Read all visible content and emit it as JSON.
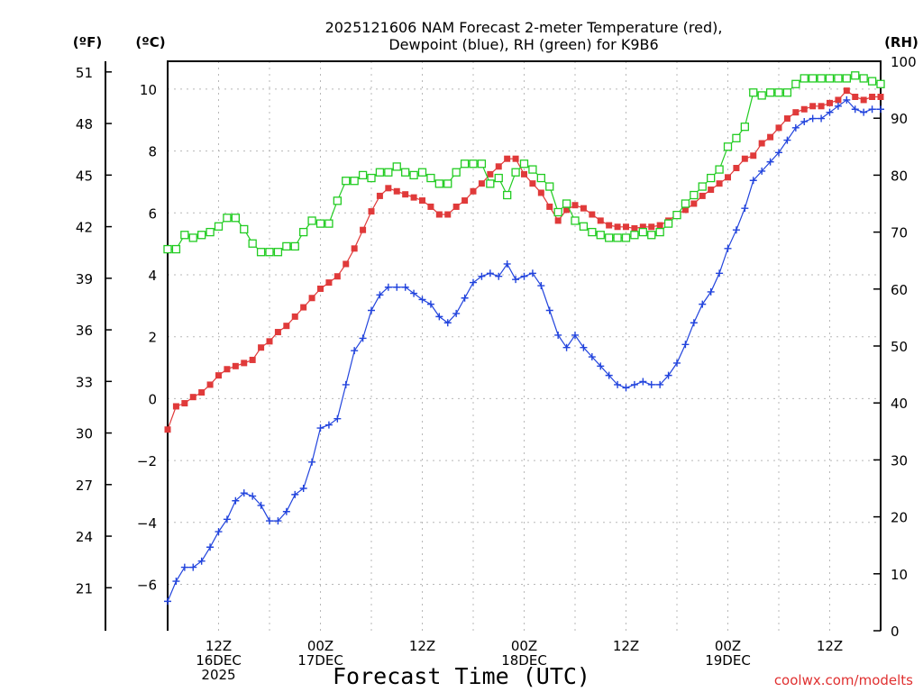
{
  "chart_data": {
    "type": "line",
    "title_line1": "2025121606 NAM Forecast 2-meter Temperature (red),",
    "title_line2": "Dewpoint (blue), RH (green) for K9B6",
    "unit_left_outer": "(ºF)",
    "unit_left_inner": "(ºC)",
    "unit_right": "(RH)",
    "xlabel": "Forecast Time (UTC)",
    "credit": "coolwx.com/modelts",
    "xlim_hours": [
      6,
      90
    ],
    "celsius_axis": {
      "lim": [
        -7.5,
        10.9
      ],
      "ticks": [
        "-6",
        "-4",
        "-2",
        "0",
        "2",
        "4",
        "6",
        "8",
        "10"
      ]
    },
    "fahrenheit_axis": {
      "ticks": [
        "21",
        "24",
        "27",
        "30",
        "33",
        "36",
        "39",
        "42",
        "45",
        "48",
        "51"
      ]
    },
    "rh_axis": {
      "lim": [
        0,
        100
      ],
      "ticks": [
        "0",
        "10",
        "20",
        "30",
        "40",
        "50",
        "60",
        "70",
        "80",
        "90",
        "100"
      ]
    },
    "x_ticks": [
      {
        "hour": 12,
        "lines": [
          "12Z",
          "16DEC",
          "2025"
        ]
      },
      {
        "hour": 24,
        "lines": [
          "00Z",
          "17DEC"
        ]
      },
      {
        "hour": 36,
        "lines": [
          "12Z"
        ]
      },
      {
        "hour": 48,
        "lines": [
          "00Z",
          "18DEC"
        ]
      },
      {
        "hour": 60,
        "lines": [
          "12Z"
        ]
      },
      {
        "hour": 72,
        "lines": [
          "00Z",
          "19DEC"
        ]
      },
      {
        "hour": 84,
        "lines": [
          "12Z"
        ]
      }
    ],
    "series": [
      {
        "name": "Temperature (C)",
        "axis": "celsius",
        "color": "#e03a3a",
        "marker": "filled-square",
        "points": [
          [
            6,
            -1.0
          ],
          [
            7,
            -0.25
          ],
          [
            8,
            -0.15
          ],
          [
            9,
            0.05
          ],
          [
            10,
            0.2
          ],
          [
            11,
            0.45
          ],
          [
            12,
            0.75
          ],
          [
            13,
            0.95
          ],
          [
            14,
            1.05
          ],
          [
            15,
            1.15
          ],
          [
            16,
            1.25
          ],
          [
            17,
            1.65
          ],
          [
            18,
            1.85
          ],
          [
            19,
            2.15
          ],
          [
            20,
            2.35
          ],
          [
            21,
            2.65
          ],
          [
            22,
            2.95
          ],
          [
            23,
            3.25
          ],
          [
            24,
            3.55
          ],
          [
            25,
            3.75
          ],
          [
            26,
            3.95
          ],
          [
            27,
            4.35
          ],
          [
            28,
            4.85
          ],
          [
            29,
            5.45
          ],
          [
            30,
            6.05
          ],
          [
            31,
            6.55
          ],
          [
            32,
            6.8
          ],
          [
            33,
            6.7
          ],
          [
            34,
            6.6
          ],
          [
            35,
            6.5
          ],
          [
            36,
            6.4
          ],
          [
            37,
            6.2
          ],
          [
            38,
            5.95
          ],
          [
            39,
            5.95
          ],
          [
            40,
            6.2
          ],
          [
            41,
            6.4
          ],
          [
            42,
            6.7
          ],
          [
            43,
            6.95
          ],
          [
            44,
            7.25
          ],
          [
            45,
            7.5
          ],
          [
            46,
            7.75
          ],
          [
            47,
            7.75
          ],
          [
            48,
            7.25
          ],
          [
            49,
            6.95
          ],
          [
            50,
            6.65
          ],
          [
            51,
            6.2
          ],
          [
            52,
            5.75
          ],
          [
            53,
            6.1
          ],
          [
            54,
            6.25
          ],
          [
            55,
            6.15
          ],
          [
            56,
            5.95
          ],
          [
            57,
            5.75
          ],
          [
            58,
            5.6
          ],
          [
            59,
            5.55
          ],
          [
            60,
            5.55
          ],
          [
            61,
            5.5
          ],
          [
            62,
            5.55
          ],
          [
            63,
            5.55
          ],
          [
            64,
            5.6
          ],
          [
            65,
            5.75
          ],
          [
            66,
            5.95
          ],
          [
            67,
            6.1
          ],
          [
            68,
            6.3
          ],
          [
            69,
            6.55
          ],
          [
            70,
            6.75
          ],
          [
            71,
            6.95
          ],
          [
            72,
            7.15
          ],
          [
            73,
            7.45
          ],
          [
            74,
            7.75
          ],
          [
            75,
            7.85
          ],
          [
            76,
            8.25
          ],
          [
            77,
            8.45
          ],
          [
            78,
            8.75
          ],
          [
            79,
            9.05
          ],
          [
            80,
            9.25
          ],
          [
            81,
            9.35
          ],
          [
            82,
            9.45
          ],
          [
            83,
            9.45
          ],
          [
            84,
            9.55
          ],
          [
            85,
            9.65
          ],
          [
            86,
            9.95
          ],
          [
            87,
            9.75
          ],
          [
            88,
            9.65
          ],
          [
            89,
            9.75
          ],
          [
            90,
            9.75
          ]
        ]
      },
      {
        "name": "Dewpoint (C)",
        "axis": "celsius",
        "color": "#2244dd",
        "marker": "plus",
        "points": [
          [
            6,
            -6.55
          ],
          [
            7,
            -5.9
          ],
          [
            8,
            -5.45
          ],
          [
            9,
            -5.45
          ],
          [
            10,
            -5.25
          ],
          [
            11,
            -4.8
          ],
          [
            12,
            -4.3
          ],
          [
            13,
            -3.9
          ],
          [
            14,
            -3.3
          ],
          [
            15,
            -3.05
          ],
          [
            16,
            -3.15
          ],
          [
            17,
            -3.45
          ],
          [
            18,
            -3.95
          ],
          [
            19,
            -3.95
          ],
          [
            20,
            -3.65
          ],
          [
            21,
            -3.1
          ],
          [
            22,
            -2.9
          ],
          [
            23,
            -2.05
          ],
          [
            24,
            -0.95
          ],
          [
            25,
            -0.85
          ],
          [
            26,
            -0.65
          ],
          [
            27,
            0.45
          ],
          [
            28,
            1.55
          ],
          [
            29,
            1.95
          ],
          [
            30,
            2.85
          ],
          [
            31,
            3.35
          ],
          [
            32,
            3.6
          ],
          [
            33,
            3.6
          ],
          [
            34,
            3.6
          ],
          [
            35,
            3.4
          ],
          [
            36,
            3.2
          ],
          [
            37,
            3.05
          ],
          [
            38,
            2.65
          ],
          [
            39,
            2.45
          ],
          [
            40,
            2.75
          ],
          [
            41,
            3.25
          ],
          [
            42,
            3.75
          ],
          [
            43,
            3.95
          ],
          [
            44,
            4.05
          ],
          [
            45,
            3.95
          ],
          [
            46,
            4.35
          ],
          [
            47,
            3.85
          ],
          [
            48,
            3.95
          ],
          [
            49,
            4.05
          ],
          [
            50,
            3.65
          ],
          [
            51,
            2.85
          ],
          [
            52,
            2.05
          ],
          [
            53,
            1.65
          ],
          [
            54,
            2.05
          ],
          [
            55,
            1.65
          ],
          [
            56,
            1.35
          ],
          [
            57,
            1.05
          ],
          [
            58,
            0.75
          ],
          [
            59,
            0.45
          ],
          [
            60,
            0.35
          ],
          [
            61,
            0.45
          ],
          [
            62,
            0.55
          ],
          [
            63,
            0.45
          ],
          [
            64,
            0.45
          ],
          [
            65,
            0.75
          ],
          [
            66,
            1.15
          ],
          [
            67,
            1.75
          ],
          [
            68,
            2.45
          ],
          [
            69,
            3.05
          ],
          [
            70,
            3.45
          ],
          [
            71,
            4.05
          ],
          [
            72,
            4.85
          ],
          [
            73,
            5.45
          ],
          [
            74,
            6.15
          ],
          [
            75,
            7.05
          ],
          [
            76,
            7.35
          ],
          [
            77,
            7.65
          ],
          [
            78,
            7.95
          ],
          [
            79,
            8.35
          ],
          [
            80,
            8.75
          ],
          [
            81,
            8.95
          ],
          [
            82,
            9.05
          ],
          [
            83,
            9.05
          ],
          [
            84,
            9.25
          ],
          [
            85,
            9.45
          ],
          [
            86,
            9.65
          ],
          [
            87,
            9.35
          ],
          [
            88,
            9.25
          ],
          [
            89,
            9.35
          ],
          [
            90,
            9.35
          ]
        ]
      },
      {
        "name": "RH (%)",
        "axis": "rh",
        "color": "#22cc22",
        "marker": "open-square",
        "points": [
          [
            6,
            67
          ],
          [
            7,
            67
          ],
          [
            8,
            69.5
          ],
          [
            9,
            69
          ],
          [
            10,
            69.5
          ],
          [
            11,
            70
          ],
          [
            12,
            71
          ],
          [
            13,
            72.5
          ],
          [
            14,
            72.5
          ],
          [
            15,
            70.5
          ],
          [
            16,
            68
          ],
          [
            17,
            66.5
          ],
          [
            18,
            66.5
          ],
          [
            19,
            66.5
          ],
          [
            20,
            67.5
          ],
          [
            21,
            67.5
          ],
          [
            22,
            70
          ],
          [
            23,
            72
          ],
          [
            24,
            71.5
          ],
          [
            25,
            71.5
          ],
          [
            26,
            75.5
          ],
          [
            27,
            79
          ],
          [
            28,
            79
          ],
          [
            29,
            80
          ],
          [
            30,
            79.5
          ],
          [
            31,
            80.5
          ],
          [
            32,
            80.5
          ],
          [
            33,
            81.5
          ],
          [
            34,
            80.5
          ],
          [
            35,
            80
          ],
          [
            36,
            80.5
          ],
          [
            37,
            79.5
          ],
          [
            38,
            78.5
          ],
          [
            39,
            78.5
          ],
          [
            40,
            80.5
          ],
          [
            41,
            82
          ],
          [
            42,
            82
          ],
          [
            43,
            82
          ],
          [
            44,
            78.5
          ],
          [
            45,
            79.5
          ],
          [
            46,
            76.5
          ],
          [
            47,
            80.5
          ],
          [
            48,
            82
          ],
          [
            49,
            81
          ],
          [
            50,
            79.5
          ],
          [
            51,
            78
          ],
          [
            52,
            73.5
          ],
          [
            53,
            75
          ],
          [
            54,
            72
          ],
          [
            55,
            71
          ],
          [
            56,
            70
          ],
          [
            57,
            69.5
          ],
          [
            58,
            69
          ],
          [
            59,
            69
          ],
          [
            60,
            69
          ],
          [
            61,
            69.5
          ],
          [
            62,
            70
          ],
          [
            63,
            69.5
          ],
          [
            64,
            70
          ],
          [
            65,
            71.5
          ],
          [
            66,
            73
          ],
          [
            67,
            75
          ],
          [
            68,
            76.5
          ],
          [
            69,
            78
          ],
          [
            70,
            79.5
          ],
          [
            71,
            81
          ],
          [
            72,
            85
          ],
          [
            73,
            86.5
          ],
          [
            74,
            88.5
          ],
          [
            75,
            94.5
          ],
          [
            76,
            94
          ],
          [
            77,
            94.5
          ],
          [
            78,
            94.5
          ],
          [
            79,
            94.5
          ],
          [
            80,
            96
          ],
          [
            81,
            97
          ],
          [
            82,
            97
          ],
          [
            83,
            97
          ],
          [
            84,
            97
          ],
          [
            85,
            97
          ],
          [
            86,
            97
          ],
          [
            87,
            97.5
          ],
          [
            88,
            97
          ],
          [
            89,
            96.5
          ],
          [
            90,
            96
          ]
        ]
      }
    ]
  }
}
